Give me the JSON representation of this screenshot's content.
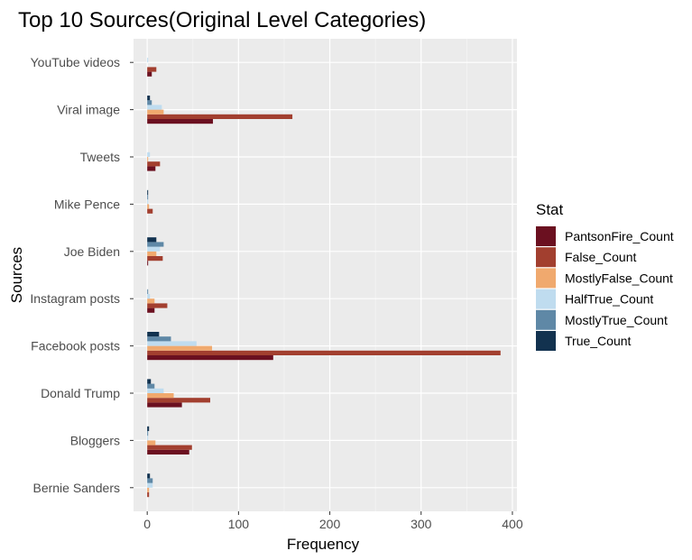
{
  "chart_data": {
    "type": "bar",
    "orientation": "horizontal",
    "title": "Top 10 Sources(Original Level Categories)",
    "xlabel": "Frequency",
    "ylabel": "Sources",
    "xlim": [
      -15,
      405
    ],
    "x_ticks": [
      0,
      100,
      200,
      300,
      400
    ],
    "grid": true,
    "legend_title": "Stat",
    "legend_position": "right",
    "categories": [
      "Bernie Sanders",
      "Bloggers",
      "Donald Trump",
      "Facebook posts",
      "Instagram posts",
      "Joe Biden",
      "Mike Pence",
      "Tweets",
      "Viral image",
      "YouTube videos"
    ],
    "series": [
      {
        "name": "PantsonFire_Count",
        "color": "#6b1020",
        "values": [
          0,
          46,
          38,
          138,
          8,
          1,
          0,
          9,
          72,
          5
        ]
      },
      {
        "name": "False_Count",
        "color": "#a23f2f",
        "values": [
          2,
          49,
          69,
          387,
          22,
          17,
          6,
          14,
          159,
          10
        ]
      },
      {
        "name": "MostlyFalse_Count",
        "color": "#f0a96e",
        "values": [
          2,
          9,
          29,
          71,
          8,
          10,
          2,
          1,
          18,
          0
        ]
      },
      {
        "name": "HalfTrue_Count",
        "color": "#bfdcef",
        "values": [
          6,
          1,
          18,
          54,
          3,
          14,
          1,
          3,
          16,
          1
        ]
      },
      {
        "name": "MostlyTrue_Count",
        "color": "#5f88a6",
        "values": [
          6,
          1,
          8,
          26,
          1,
          18,
          1,
          0,
          5,
          0
        ]
      },
      {
        "name": "True_Count",
        "color": "#12324f",
        "values": [
          3,
          2,
          4,
          13,
          0,
          10,
          1,
          0,
          3,
          0
        ]
      }
    ]
  }
}
